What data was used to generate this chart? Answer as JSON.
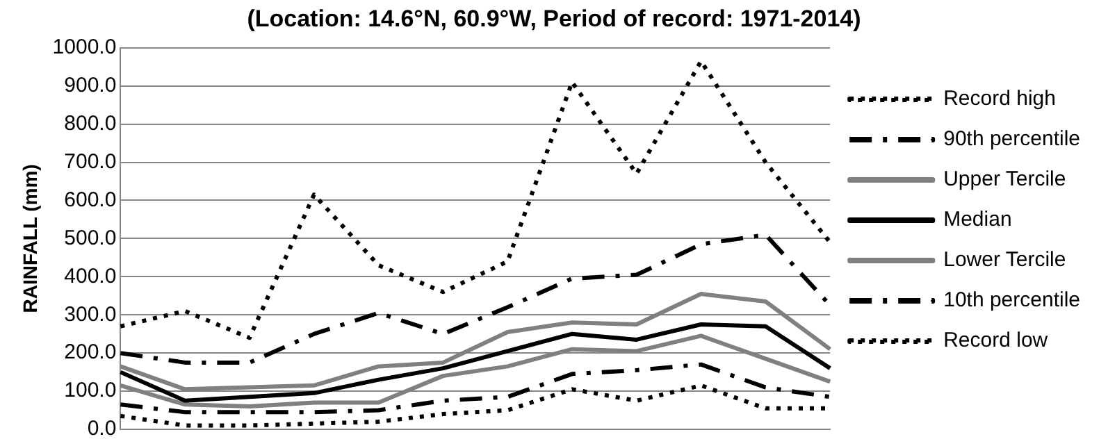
{
  "chart_data": {
    "type": "line",
    "title": "(Location: 14.6°N, 60.9°W, Period of record: 1971-2014)",
    "ylabel": "RAINFALL (mm)",
    "categories": [
      null,
      null,
      null,
      null,
      null,
      null,
      null,
      null,
      null,
      null,
      null,
      null
    ],
    "series": [
      {
        "name": "Record high",
        "color": "#000000",
        "line_style": "dotted",
        "values": [
          270,
          310,
          240,
          615,
          430,
          360,
          440,
          910,
          670,
          965,
          700,
          490
        ]
      },
      {
        "name": "90th percentile",
        "color": "#000000",
        "line_style": "dashed",
        "values": [
          200,
          175,
          175,
          250,
          305,
          250,
          320,
          395,
          405,
          485,
          510,
          325
        ]
      },
      {
        "name": "Upper Tercile",
        "color": "#808080",
        "line_style": "solid",
        "values": [
          165,
          105,
          110,
          115,
          165,
          175,
          255,
          280,
          275,
          355,
          335,
          210
        ]
      },
      {
        "name": "Median",
        "color": "#000000",
        "line_style": "solid",
        "values": [
          150,
          75,
          85,
          95,
          130,
          160,
          205,
          250,
          235,
          275,
          270,
          160
        ]
      },
      {
        "name": "Lower Tercile",
        "color": "#808080",
        "line_style": "solid",
        "values": [
          115,
          65,
          60,
          70,
          70,
          140,
          165,
          210,
          205,
          245,
          185,
          125
        ]
      },
      {
        "name": "10th percentile",
        "color": "#000000",
        "line_style": "dashed",
        "values": [
          65,
          45,
          45,
          45,
          50,
          75,
          85,
          145,
          155,
          170,
          110,
          85
        ]
      },
      {
        "name": "Record low",
        "color": "#000000",
        "line_style": "dotted",
        "values": [
          35,
          10,
          10,
          15,
          20,
          40,
          50,
          105,
          75,
          115,
          55,
          55
        ]
      }
    ],
    "ylim": [
      0,
      1000
    ],
    "yticks": [
      {
        "value": 0,
        "label": "0.0"
      },
      {
        "value": 100,
        "label": "100.0"
      },
      {
        "value": 200,
        "label": "200.0"
      },
      {
        "value": 300,
        "label": "300.0"
      },
      {
        "value": 400,
        "label": "400.0"
      },
      {
        "value": 500,
        "label": "500.0"
      },
      {
        "value": 600,
        "label": "600.0"
      },
      {
        "value": 700,
        "label": "700.0"
      },
      {
        "value": 800,
        "label": "800.0"
      },
      {
        "value": 900,
        "label": "900.0"
      },
      {
        "value": 1000,
        "label": "1000.0"
      }
    ],
    "grid": "y",
    "legend": "right",
    "marker": "none",
    "tick_labels": "y"
  }
}
